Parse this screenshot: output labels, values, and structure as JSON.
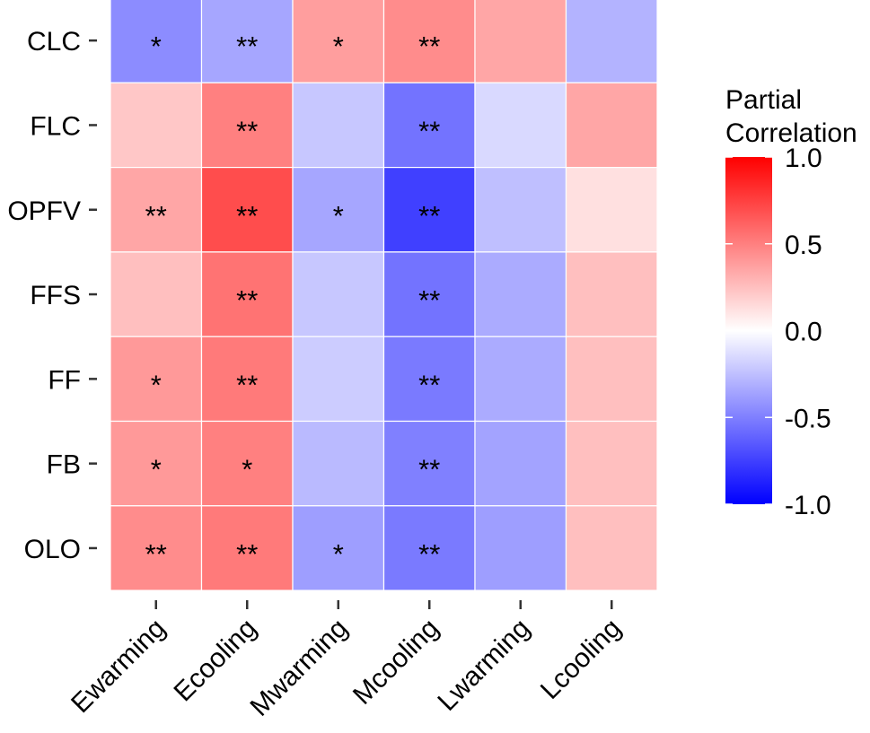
{
  "chart_data": {
    "type": "heatmap",
    "title": "",
    "xlabel": "",
    "ylabel": "",
    "columns": [
      "Ewarming",
      "Ecooling",
      "Mwarming",
      "Mcooling",
      "Lwarming",
      "Lcooling"
    ],
    "rows": [
      "CLC",
      "FLC",
      "OPFV",
      "FFS",
      "FF",
      "FB",
      "OLO"
    ],
    "values": [
      [
        -0.45,
        -0.35,
        0.38,
        0.45,
        0.35,
        -0.3
      ],
      [
        0.22,
        0.5,
        -0.22,
        -0.55,
        -0.15,
        0.35
      ],
      [
        0.35,
        0.7,
        -0.35,
        -0.75,
        -0.25,
        0.12
      ],
      [
        0.25,
        0.55,
        -0.22,
        -0.55,
        -0.33,
        0.25
      ],
      [
        0.4,
        0.52,
        -0.2,
        -0.52,
        -0.33,
        0.25
      ],
      [
        0.4,
        0.5,
        -0.27,
        -0.5,
        -0.36,
        0.25
      ],
      [
        0.45,
        0.52,
        -0.38,
        -0.52,
        -0.38,
        0.25
      ]
    ],
    "significance": [
      [
        "*",
        "**",
        "*",
        "**",
        "",
        ""
      ],
      [
        "",
        "**",
        "",
        "**",
        "",
        ""
      ],
      [
        "**",
        "**",
        "*",
        "**",
        "",
        ""
      ],
      [
        "",
        "**",
        "",
        "**",
        "",
        ""
      ],
      [
        "*",
        "**",
        "",
        "**",
        "",
        ""
      ],
      [
        "*",
        "*",
        "",
        "**",
        "",
        ""
      ],
      [
        "**",
        "**",
        "*",
        "**",
        "",
        ""
      ]
    ],
    "legend": {
      "title_line1": "Partial",
      "title_line2": "Correlation",
      "ticks": [
        "1.0",
        "0.5",
        "0.0",
        "-0.5",
        "-1.0"
      ],
      "tick_values": [
        1.0,
        0.5,
        0.0,
        -0.5,
        -1.0
      ],
      "range": [
        -1.0,
        1.0
      ],
      "low_color": "#0000ff",
      "mid_color": "#ffffff",
      "high_color": "#ff0000",
      "placement": "right"
    }
  }
}
